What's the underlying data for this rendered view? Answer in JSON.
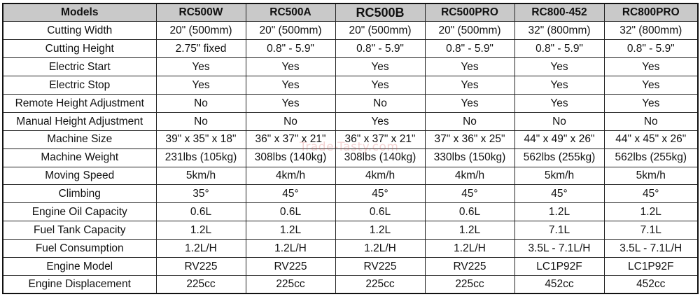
{
  "table": {
    "header_label": "Models",
    "models": [
      "RC500W",
      "RC500A",
      "RC500B",
      "RC500PRO",
      "RC800-452",
      "RC800PRO"
    ],
    "rows": [
      {
        "label": "Cutting Width",
        "values": [
          "20\" (500mm)",
          "20\" (500mm)",
          "20\" (500mm)",
          "20\" (500mm)",
          "32\" (800mm)",
          "32\" (800mm)"
        ]
      },
      {
        "label": "Cutting Height",
        "values": [
          "2.75\" fixed",
          "0.8\" - 5.9\"",
          "0.8\" - 5.9\"",
          "0.8\" - 5.9\"",
          "0.8\" - 5.9\"",
          "0.8\" - 5.9\""
        ]
      },
      {
        "label": "Electric Start",
        "values": [
          "Yes",
          "Yes",
          "Yes",
          "Yes",
          "Yes",
          "Yes"
        ]
      },
      {
        "label": "Electric Stop",
        "values": [
          "Yes",
          "Yes",
          "Yes",
          "Yes",
          "Yes",
          "Yes"
        ]
      },
      {
        "label": "Remote Height Adjustment",
        "values": [
          "No",
          "Yes",
          "No",
          "Yes",
          "Yes",
          "Yes"
        ]
      },
      {
        "label": "Manual Height Adjustment",
        "values": [
          "No",
          "No",
          "Yes",
          "No",
          "No",
          "No"
        ]
      },
      {
        "label": "Machine Size",
        "values": [
          "39\" x 35\" x 18\"",
          "36\" x 37\" x 21\"",
          "36\" x 37\" x 21\"",
          "37\" x 36\" x 25\"",
          "44\" x 49\" x 26\"",
          "44\" x 45\" x 26\""
        ]
      },
      {
        "label": "Machine Weight",
        "values": [
          "231lbs (105kg)",
          "308lbs (140kg)",
          "308lbs (140kg)",
          "330lbs (150kg)",
          "562lbs (255kg)",
          "562lbs (255kg)"
        ]
      },
      {
        "label": "Moving Speed",
        "values": [
          "5km/h",
          "4km/h",
          "4km/h",
          "4km/h",
          "5km/h",
          "5km/h"
        ]
      },
      {
        "label": "Climbing",
        "values": [
          "35°",
          "45°",
          "45°",
          "45°",
          "45°",
          "45°"
        ]
      },
      {
        "label": "Engine Oil Capacity",
        "values": [
          "0.6L",
          "0.6L",
          "0.6L",
          "0.6L",
          "1.2L",
          "1.2L"
        ]
      },
      {
        "label": "Fuel Tank Capacity",
        "values": [
          "1.2L",
          "1.2L",
          "1.2L",
          "1.2L",
          "7.1L",
          "7.1L"
        ]
      },
      {
        "label": "Fuel Consumption",
        "values": [
          "1.2L/H",
          "1.2L/H",
          "1.2L/H",
          "1.2L/H",
          "3.5L - 7.1L/H",
          "3.5L - 7.1L/H"
        ]
      },
      {
        "label": "Engine Model",
        "values": [
          "RV225",
          "RV225",
          "RV225",
          "RV225",
          "LC1P92F",
          "LC1P92F"
        ]
      },
      {
        "label": "Engine Displacement",
        "values": [
          "225cc",
          "225cc",
          "225cc",
          "225cc",
          "452cc",
          "452cc"
        ]
      }
    ]
  },
  "watermark": "Trade-Tasty.com",
  "colors": {
    "header_bg": "#c9c9c9",
    "border": "#222222"
  }
}
